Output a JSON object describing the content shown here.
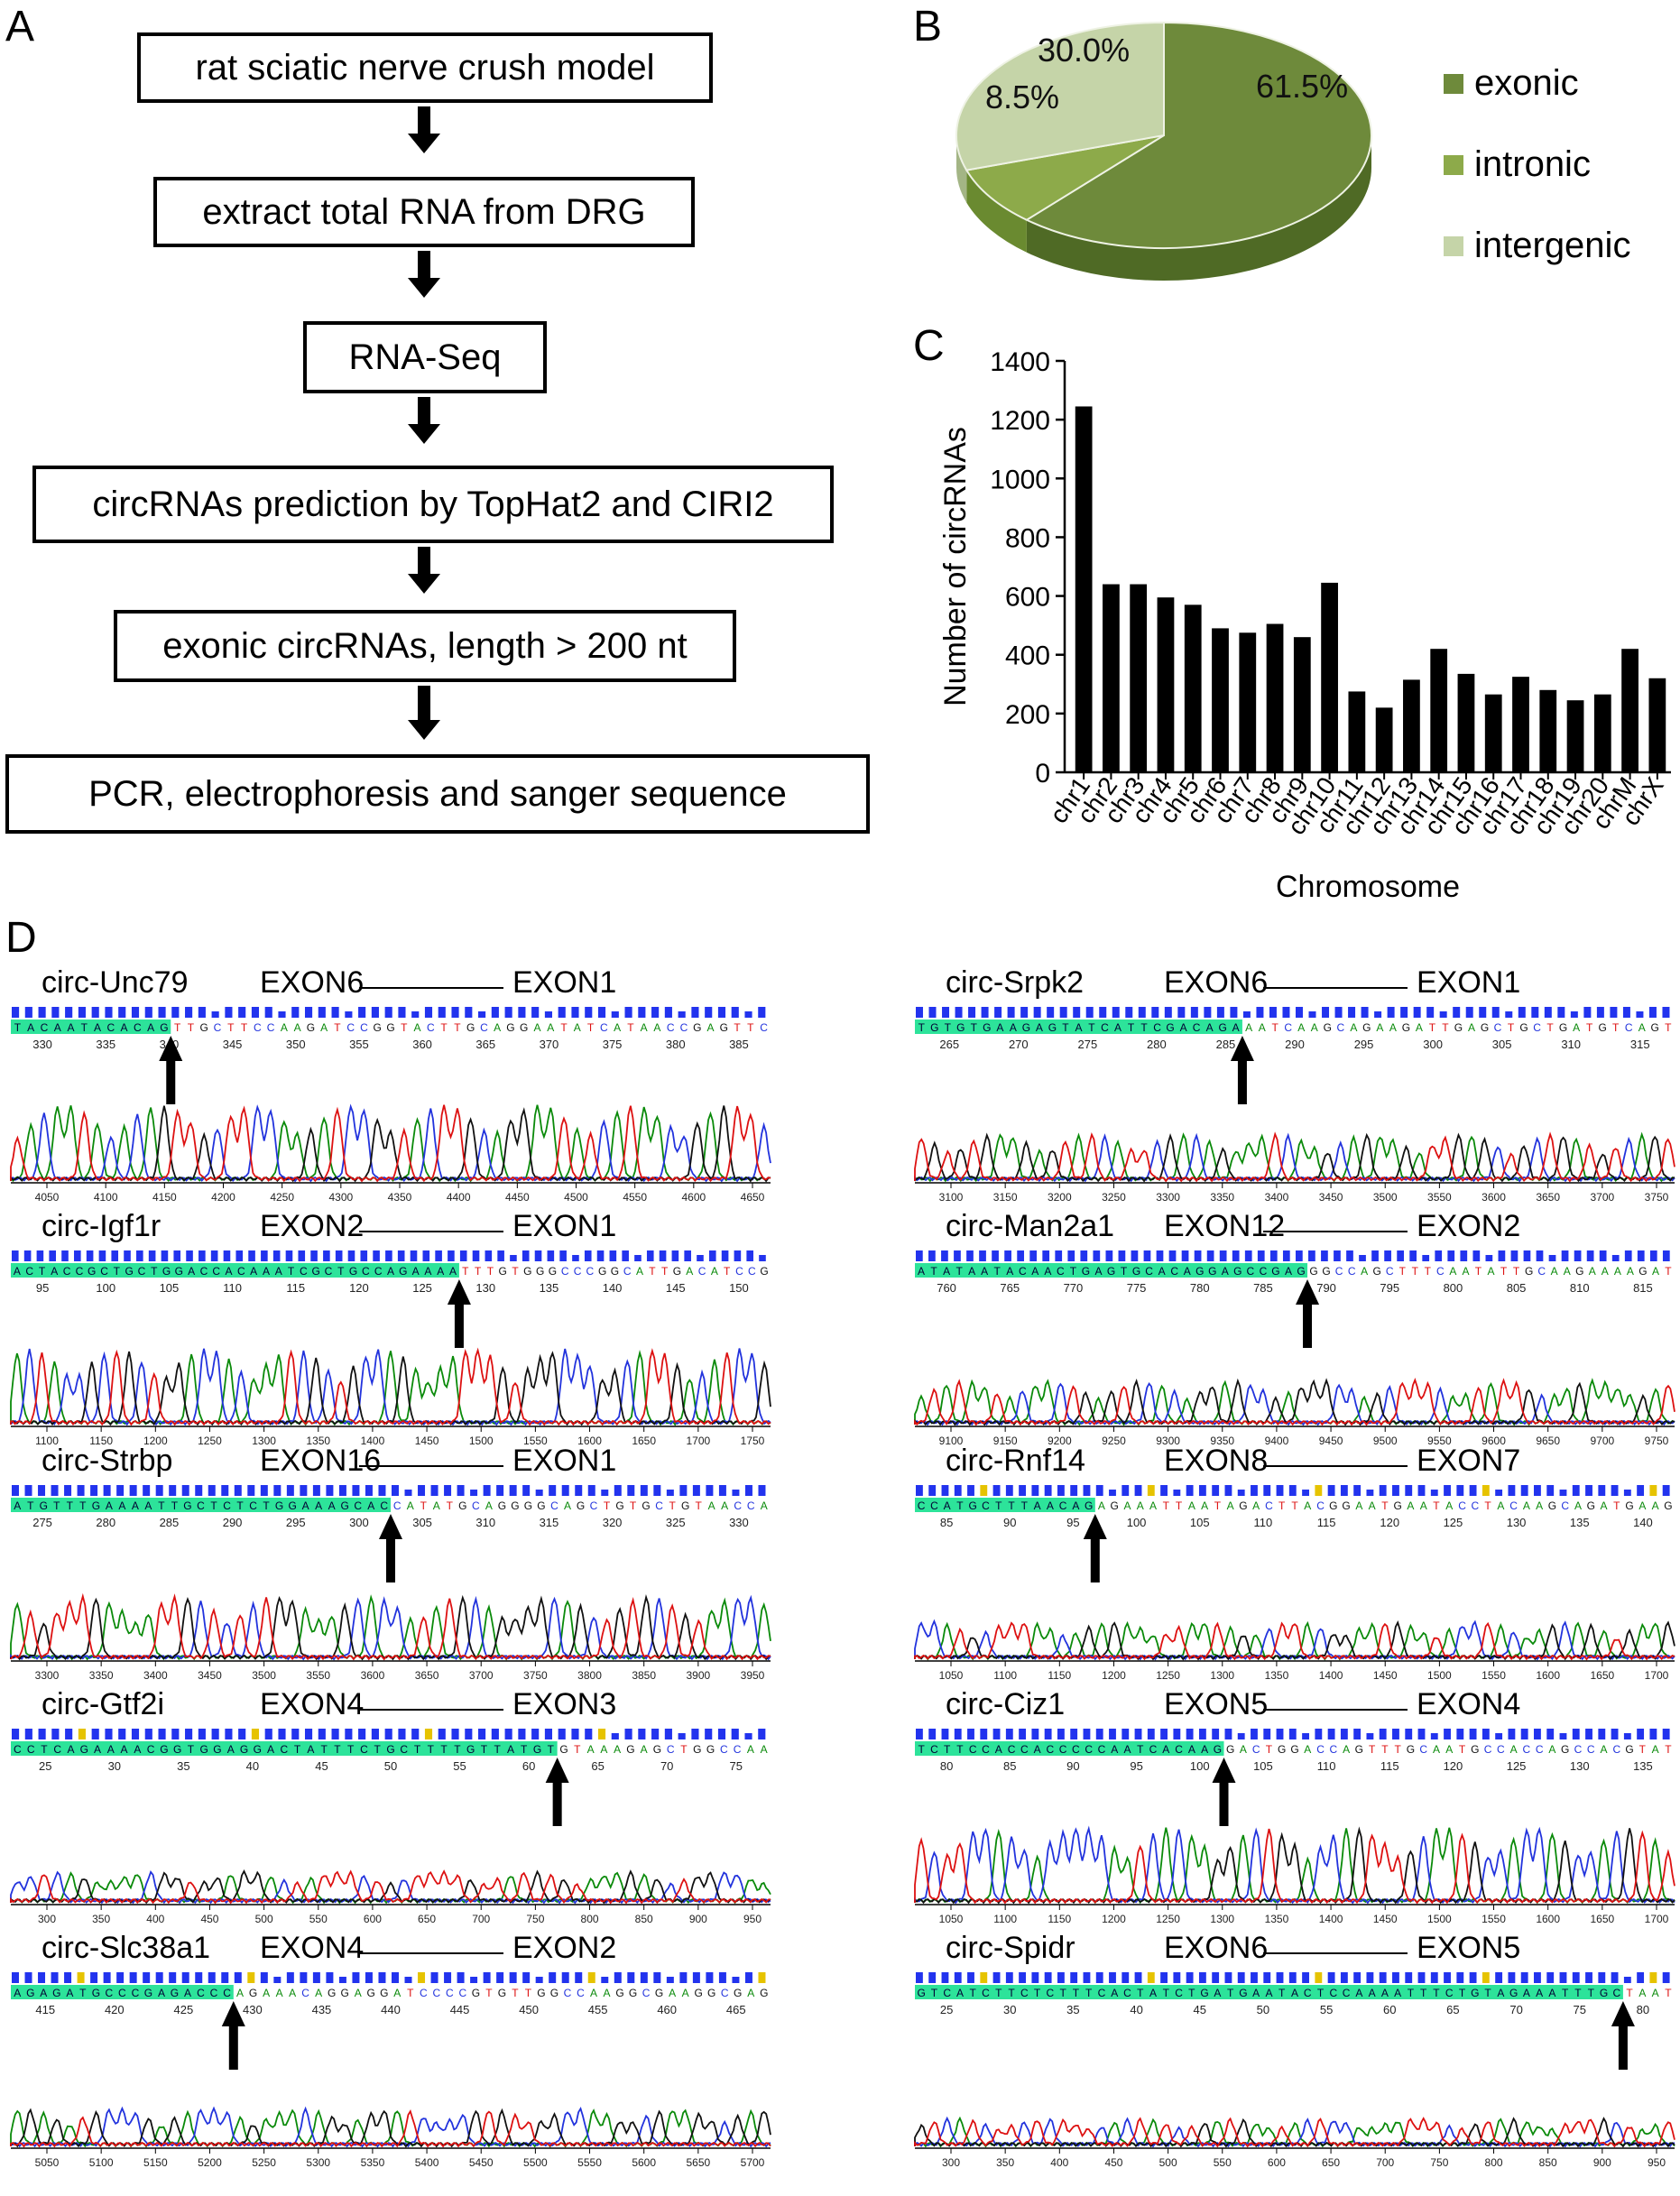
{
  "panels": {
    "a": "A",
    "b": "B",
    "c": "C",
    "d": "D"
  },
  "flowchart": {
    "steps": [
      "rat sciatic nerve crush model",
      "extract total RNA from DRG",
      "RNA-Seq",
      "circRNAs prediction by TopHat2 and CIRI2",
      "exonic circRNAs, length > 200 nt",
      "PCR, electrophoresis and sanger sequence"
    ]
  },
  "pie": {
    "slices": [
      {
        "label": "exonic",
        "value": 61.5,
        "text": "61.5%",
        "color": "#6e8a3b"
      },
      {
        "label": "intronic",
        "value": 8.5,
        "text": "8.5%",
        "color": "#8daa4a"
      },
      {
        "label": "intergenic",
        "value": 30.0,
        "text": "30.0%",
        "color": "#c5d4a8"
      }
    ]
  },
  "chart_data": {
    "type": "bar",
    "title": "",
    "xlabel": "Chromosome",
    "ylabel": "Number of circRNAs",
    "ylim": [
      0,
      1400
    ],
    "yticks": [
      "0",
      "200",
      "400",
      "600",
      "800",
      "1000",
      "1200",
      "1400"
    ],
    "categories": [
      "chr1",
      "chr2",
      "chr3",
      "chr4",
      "chr5",
      "chr6",
      "chr7",
      "chr8",
      "chr9",
      "chr10",
      "chr11",
      "chr12",
      "chr13",
      "chr14",
      "chr15",
      "chr16",
      "chr17",
      "chr18",
      "chr19",
      "chr20",
      "chrM",
      "chrX"
    ],
    "values": [
      1245,
      640,
      640,
      595,
      570,
      490,
      475,
      505,
      460,
      645,
      275,
      220,
      315,
      420,
      335,
      265,
      325,
      280,
      245,
      265,
      420,
      320
    ]
  },
  "traces": [
    {
      "name": "circ-Unc79",
      "left": "EXON6",
      "right": "EXON1",
      "seq": "TACAATACACAGTTGCTTCCAAGATCCGGTACTTGCAGGAATATCATAACCGAGTTC",
      "hl": 12,
      "ticks": [
        "330",
        "335",
        "340",
        "345",
        "350",
        "355",
        "360",
        "365",
        "370",
        "375",
        "380",
        "385"
      ],
      "xticks": [
        "4050",
        "4100",
        "4150",
        "4200",
        "4250",
        "4300",
        "4350",
        "4400",
        "4450",
        "4500",
        "4550",
        "4600",
        "4650"
      ],
      "amp": 1.0
    },
    {
      "name": "circ-Srpk2",
      "left": "EXON6",
      "right": "EXON1",
      "seq": "TGTGTGAAGAGTATCATTCGACAGAAATCAAGCAGAAGATTGAGCTGCTGATGTCAGT",
      "hl": 25,
      "ticks": [
        "265",
        "270",
        "275",
        "280",
        "285",
        "290",
        "295",
        "300",
        "305",
        "310",
        "315"
      ],
      "xticks": [
        "3100",
        "3150",
        "3200",
        "3250",
        "3300",
        "3350",
        "3400",
        "3450",
        "3500",
        "3550",
        "3600",
        "3650",
        "3700",
        "3750"
      ],
      "amp": 0.55
    },
    {
      "name": "circ-Igf1r",
      "left": "EXON2",
      "right": "EXON1",
      "seq": "ACTACCGCTGCTGGACCACAAATCGCTGCCAGAAAATTTGTGGGCCCGGCATTGACATCCG",
      "hl": 36,
      "ticks": [
        "95",
        "100",
        "105",
        "110",
        "115",
        "120",
        "125",
        "130",
        "135",
        "140",
        "145",
        "150"
      ],
      "xticks": [
        "1100",
        "1150",
        "1200",
        "1250",
        "1300",
        "1350",
        "1400",
        "1450",
        "1500",
        "1550",
        "1600",
        "1650",
        "1700",
        "1750"
      ],
      "amp": 1.0
    },
    {
      "name": "circ-Man2a1",
      "left": "EXON12",
      "right": "EXON2",
      "seq": "ATATAATACAACTGAGTGCACAGGAGCCGAGGGCCAGCTTTCAATATTGCAAGAAAAGAT",
      "hl": 31,
      "ticks": [
        "760",
        "765",
        "770",
        "775",
        "780",
        "785",
        "790",
        "795",
        "800",
        "805",
        "810",
        "815"
      ],
      "xticks": [
        "9100",
        "9150",
        "9200",
        "9250",
        "9300",
        "9350",
        "9400",
        "9450",
        "9500",
        "9550",
        "9600",
        "9650",
        "9700",
        "9750"
      ],
      "amp": 0.5
    },
    {
      "name": "circ-Strbp",
      "left": "EXON16",
      "right": "EXON1",
      "seq": "ATGTTTGAAAATTGCTCTCTGGAAAGCACCATATGCAGGGGCAGCTGTGCTGTAACCA",
      "hl": 29,
      "ticks": [
        "275",
        "280",
        "285",
        "290",
        "295",
        "300",
        "305",
        "310",
        "315",
        "320",
        "325",
        "330"
      ],
      "xticks": [
        "3300",
        "3350",
        "3400",
        "3450",
        "3500",
        "3550",
        "3600",
        "3650",
        "3700",
        "3750",
        "3800",
        "3850",
        "3900",
        "3950"
      ],
      "amp": 0.8
    },
    {
      "name": "circ-Rnf14",
      "left": "EXON8",
      "right": "EXON7",
      "seq": "CCATGCTTTAACAGAGAAATTAATAGACTTACGGAATGAATACCTACAAGCAGATGAAG",
      "hl": 14,
      "ticks": [
        "85",
        "90",
        "95",
        "100",
        "105",
        "110",
        "115",
        "120",
        "125",
        "130",
        "135",
        "140"
      ],
      "xticks": [
        "1050",
        "1100",
        "1150",
        "1200",
        "1250",
        "1300",
        "1350",
        "1400",
        "1450",
        "1500",
        "1550",
        "1600",
        "1650",
        "1700"
      ],
      "amp": 0.4
    },
    {
      "name": "circ-Gtf2i",
      "left": "EXON4",
      "right": "EXON3",
      "seq": "CCTCAGAAAACGGTGGAGGACTATTTCTGCTTTTGTTATGTGTAAAGAGCTGGCCAA",
      "hl": 41,
      "ticks": [
        "25",
        "30",
        "35",
        "40",
        "45",
        "50",
        "55",
        "60",
        "65",
        "70",
        "75"
      ],
      "xticks": [
        "300",
        "350",
        "400",
        "450",
        "500",
        "550",
        "600",
        "650",
        "700",
        "750",
        "800",
        "850",
        "900",
        "950"
      ],
      "amp": 0.3
    },
    {
      "name": "circ-Ciz1",
      "left": "EXON5",
      "right": "EXON4",
      "seq": "TCTTCCACCACCCCCAATCACAAGGACTGGACCAGTTTGCAATGCCACCAGCCACGTAT",
      "hl": 24,
      "ticks": [
        "80",
        "85",
        "90",
        "95",
        "100",
        "105",
        "110",
        "115",
        "120",
        "125",
        "130",
        "135"
      ],
      "xticks": [
        "1050",
        "1100",
        "1150",
        "1200",
        "1250",
        "1300",
        "1350",
        "1400",
        "1450",
        "1500",
        "1550",
        "1600",
        "1650",
        "1700"
      ],
      "amp": 1.0
    },
    {
      "name": "circ-Slc38a1",
      "left": "EXON4",
      "right": "EXON2",
      "seq": "AGAGATGCCCGAGACCCAGAAACAGGAGGATCCCCGTGTTGGCCAAGGCGAAGGCGAG",
      "hl": 17,
      "ticks": [
        "415",
        "420",
        "425",
        "430",
        "435",
        "440",
        "445",
        "450",
        "455",
        "460",
        "465"
      ],
      "xticks": [
        "5050",
        "5100",
        "5150",
        "5200",
        "5250",
        "5300",
        "5350",
        "5400",
        "5450",
        "5500",
        "5550",
        "5600",
        "5650",
        "5700"
      ],
      "amp": 0.4
    },
    {
      "name": "circ-Spidr",
      "left": "EXON6",
      "right": "EXON5",
      "seq": "GTCATCTTCTCTTTCACTATCTGATGAATACTCCAAAATTTCTGTAGAAATTTGCTAAT",
      "hl": 55,
      "ticks": [
        "25",
        "30",
        "35",
        "40",
        "45",
        "50",
        "55",
        "60",
        "65",
        "70",
        "75",
        "80"
      ],
      "xticks": [
        "300",
        "350",
        "400",
        "450",
        "500",
        "550",
        "600",
        "650",
        "700",
        "750",
        "800",
        "850",
        "900",
        "950"
      ],
      "amp": 0.25
    }
  ]
}
